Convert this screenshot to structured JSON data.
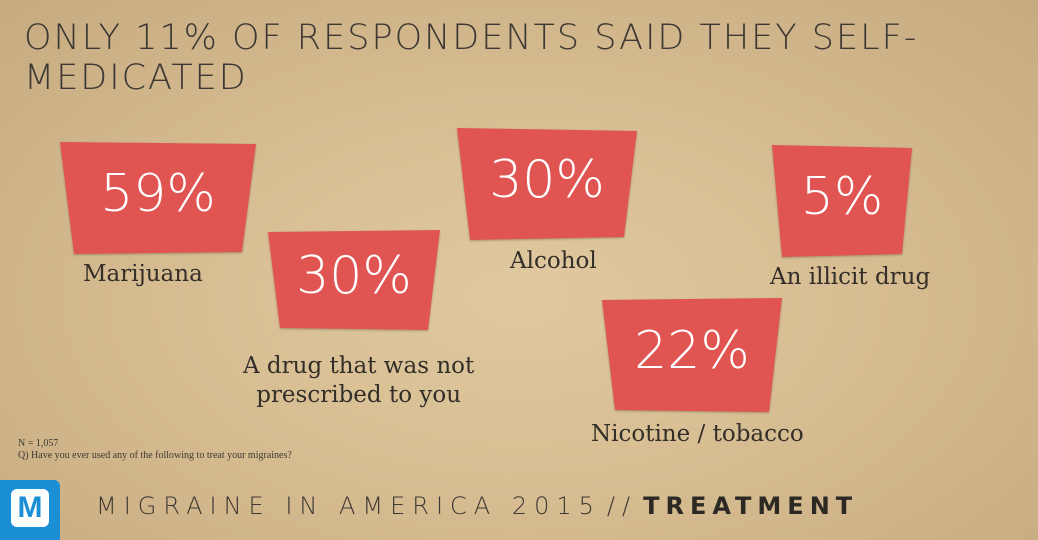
{
  "title": "ONLY 11% OF RESPONDENTS SAID THEY SELF-MEDICATED",
  "chart_data": {
    "type": "bar",
    "unit": "%",
    "categories": [
      "Marijuana",
      "A drug that was not prescribed to you",
      "Alcohol",
      "Nicotine / tobacco",
      "An illicit drug"
    ],
    "values": [
      59,
      30,
      30,
      22,
      5
    ],
    "value_labels": [
      "59%",
      "30%",
      "30%",
      "22%",
      "5%"
    ],
    "label_lines": [
      [
        "Marijuana"
      ],
      [
        "A drug that was not",
        "prescribed to you"
      ],
      [
        "Alcohol"
      ],
      [
        "Nicotine / tobacco"
      ],
      [
        "An illicit drug"
      ]
    ],
    "badge_color": "#e05452"
  },
  "notes": {
    "n": "N = 1,057",
    "question": "Q) Have you ever used any of the following to treat your migraines?"
  },
  "footer": {
    "logo_letter": "M",
    "logo_icon": "migraine-logo-icon",
    "logo_color": "#1a8fd6",
    "series_label": "MIGRAINE IN AMERICA 2015",
    "separator": "//",
    "section": "TREATMENT"
  }
}
